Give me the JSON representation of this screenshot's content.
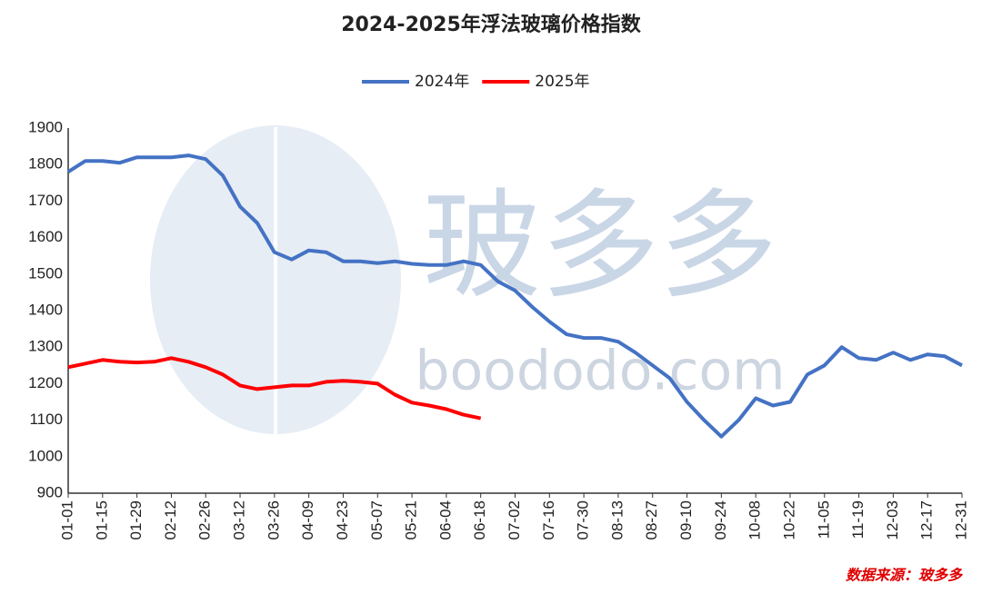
{
  "chart_data": {
    "type": "line",
    "title": "2024-2025年浮法玻璃价格指数",
    "source_note": "数据来源：玻多多",
    "watermark_text": "玻多多",
    "watermark_url": "boododo.com",
    "categories": [
      "01-01",
      null,
      "01-15",
      null,
      "01-29",
      null,
      "02-12",
      null,
      "02-26",
      null,
      "03-12",
      null,
      "03-26",
      null,
      "04-09",
      null,
      "04-23",
      null,
      "05-07",
      null,
      "05-21",
      null,
      "06-04",
      null,
      "06-18",
      null,
      "07-02",
      null,
      "07-16",
      null,
      "07-30",
      null,
      "08-13",
      null,
      "08-27",
      null,
      "09-10",
      null,
      "09-24",
      null,
      "10-08",
      null,
      "10-22",
      null,
      "11-05",
      null,
      "11-19",
      null,
      "12-03",
      null,
      "12-17",
      null,
      "12-31"
    ],
    "series": [
      {
        "name": "2024年",
        "color": "#4472c4",
        "values": [
          1780,
          1810,
          1810,
          1805,
          1820,
          1820,
          1820,
          1825,
          1815,
          1770,
          1685,
          1640,
          1560,
          1540,
          1565,
          1560,
          1535,
          1535,
          1530,
          1535,
          1528,
          1525,
          1525,
          1535,
          1525,
          1480,
          1455,
          1410,
          1370,
          1335,
          1325,
          1325,
          1315,
          1285,
          1250,
          1215,
          1150,
          1100,
          1055,
          1100,
          1160,
          1140,
          1150,
          1225,
          1250,
          1300,
          1270,
          1265,
          1285,
          1265,
          1280,
          1275,
          1250
        ]
      },
      {
        "name": "2025年",
        "color": "#ff0000",
        "values": [
          1245,
          1255,
          1265,
          1260,
          1258,
          1260,
          1270,
          1260,
          1245,
          1225,
          1195,
          1185,
          1190,
          1195,
          1195,
          1205,
          1208,
          1205,
          1200,
          1170,
          1148,
          1140,
          1130,
          1115,
          1105,
          null,
          null,
          null,
          null,
          null,
          null,
          null,
          null,
          null,
          null,
          null,
          null,
          null,
          null,
          null,
          null,
          null,
          null,
          null,
          null,
          null,
          null,
          null,
          null,
          null,
          null,
          null,
          null
        ]
      }
    ],
    "ylim": [
      900,
      1900
    ],
    "yticks": [
      900,
      1000,
      1100,
      1200,
      1300,
      1400,
      1500,
      1600,
      1700,
      1800,
      1900
    ],
    "grid": false,
    "legend": "top"
  }
}
